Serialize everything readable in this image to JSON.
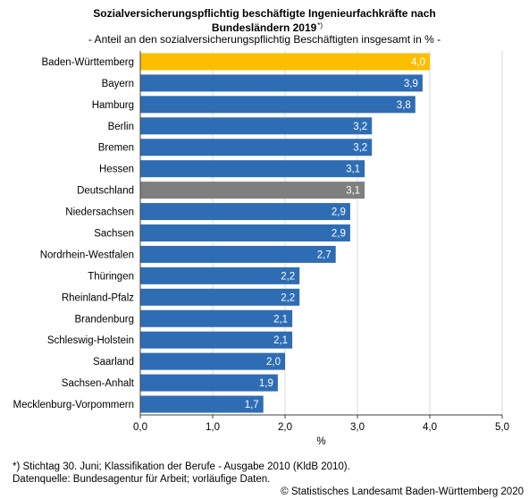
{
  "title": {
    "line1": "Sozialversicherungspflichtig beschäftigte Ingenieurfachkräfte nach",
    "line2": "Bundesländern 2019",
    "footnote_marker": "*)",
    "subtitle": "- Anteil an den sozialversicherungspflichtig Beschäftigten insgesamt in % -"
  },
  "chart_data": {
    "type": "bar",
    "orientation": "horizontal",
    "categories": [
      "Baden-Württemberg",
      "Bayern",
      "Hamburg",
      "Berlin",
      "Bremen",
      "Hessen",
      "Deutschland",
      "Niedersachsen",
      "Sachsen",
      "Nordrhein-Westfalen",
      "Thüringen",
      "Rheinland-Pfalz",
      "Brandenburg",
      "Schleswig-Holstein",
      "Saarland",
      "Sachsen-Anhalt",
      "Mecklenburg-Vorpommern"
    ],
    "values": [
      4.0,
      3.9,
      3.8,
      3.2,
      3.2,
      3.1,
      3.1,
      2.9,
      2.9,
      2.7,
      2.2,
      2.2,
      2.1,
      2.1,
      2.0,
      1.9,
      1.7
    ],
    "value_labels": [
      "4,0",
      "3,9",
      "3,8",
      "3,2",
      "3,2",
      "3,1",
      "3,1",
      "2,9",
      "2,9",
      "2,7",
      "2,2",
      "2,2",
      "2,1",
      "2,1",
      "2,0",
      "1,9",
      "1,7"
    ],
    "bar_colors": [
      "#fbbf00",
      "#2e6db4",
      "#2e6db4",
      "#2e6db4",
      "#2e6db4",
      "#2e6db4",
      "#7f7f7f",
      "#2e6db4",
      "#2e6db4",
      "#2e6db4",
      "#2e6db4",
      "#2e6db4",
      "#2e6db4",
      "#2e6db4",
      "#2e6db4",
      "#2e6db4",
      "#2e6db4"
    ],
    "xlim": [
      0,
      5
    ],
    "x_ticks": [
      0,
      1,
      2,
      3,
      4,
      5
    ],
    "x_tick_labels": [
      "0,0",
      "1,0",
      "2,0",
      "3,0",
      "4,0",
      "5,0"
    ],
    "xlabel": "%",
    "grid": "vertical",
    "colors": {
      "default": "#2e6db4",
      "highlight": "#fbbf00",
      "national": "#7f7f7f",
      "grid": "#d9d9d9",
      "axis": "#404040"
    }
  },
  "footnotes": {
    "line1": "*) Stichtag 30. Juni; Klassifikation der Berufe - Ausgabe 2010 (KldB 2010).",
    "line2": "Datenquelle: Bundesagentur für Arbeit; vorläufige Daten.",
    "copyright": "© Statistisches Landesamt Baden-Württemberg 2020"
  }
}
